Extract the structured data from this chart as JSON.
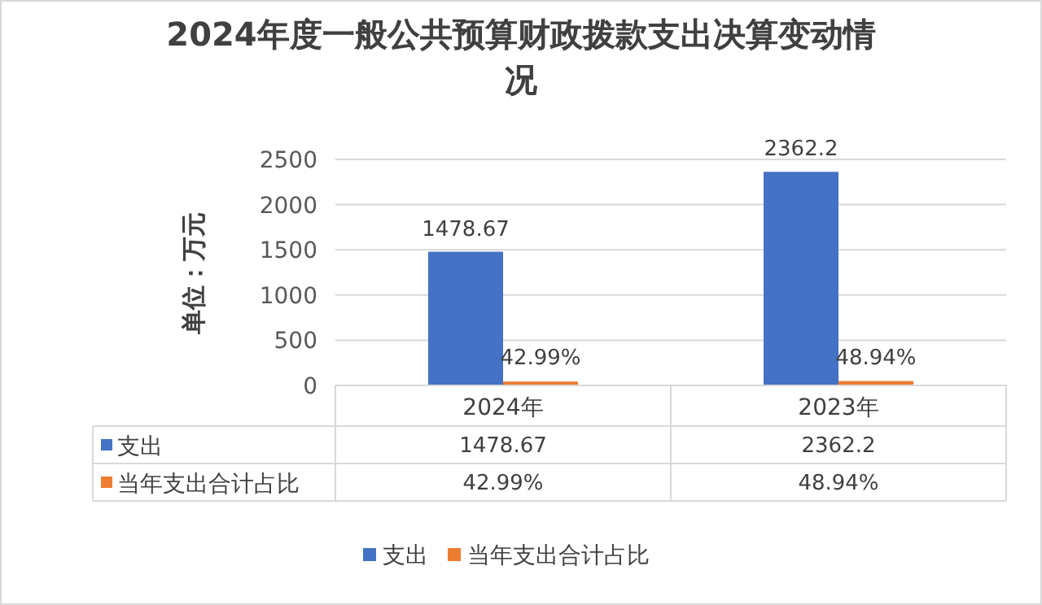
{
  "chart_data": {
    "type": "bar",
    "title": "2024年度一般公共预算财政拨款支出决算变动情况",
    "ylabel": "单位：万元",
    "categories": [
      "2024年",
      "2023年"
    ],
    "series": [
      {
        "name": "支出",
        "color": "#4472c4",
        "values": [
          1478.67,
          2362.2
        ],
        "value_labels": [
          "1478.67",
          "2362.2"
        ]
      },
      {
        "name": "当年支出合计占比",
        "color": "#ed7d31",
        "values": [
          42.99,
          48.94
        ],
        "value_labels": [
          "42.99%",
          "48.94%"
        ]
      }
    ],
    "ylim": [
      0,
      2500
    ],
    "yticks": [
      0,
      500,
      1000,
      1500,
      2000,
      2500
    ],
    "grid": "y",
    "legend": "bottom"
  }
}
